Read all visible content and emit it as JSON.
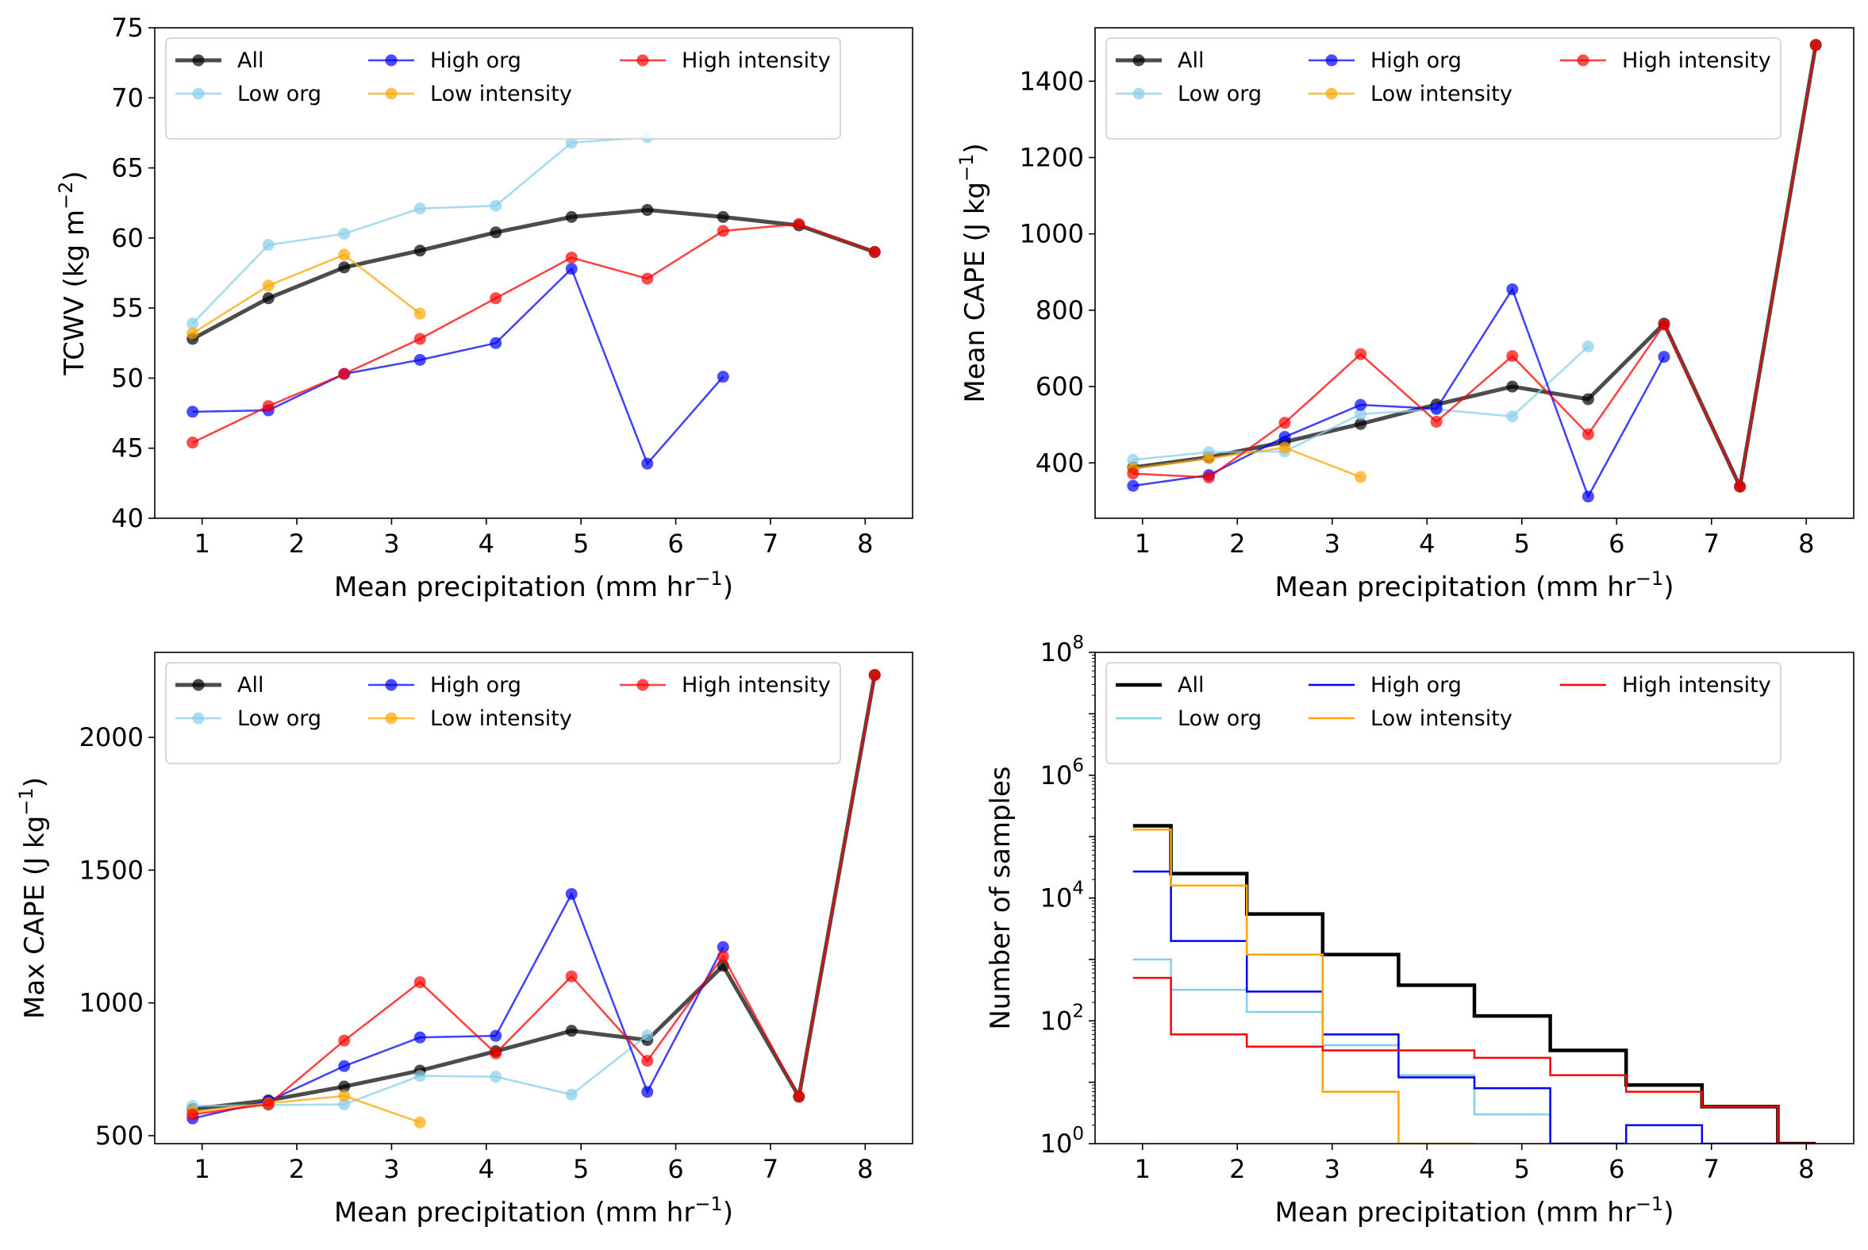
{
  "chart_data": [
    {
      "type": "line",
      "ylabel": "TCWV (kg m⁻²)",
      "xlabel": "Mean precipitation (mm hr⁻¹)",
      "xlim": [
        0.5,
        8.5
      ],
      "ylim": [
        40,
        75
      ],
      "yscale": "linear",
      "xticks": [
        {
          "v": 1,
          "label": "1"
        },
        {
          "v": 2,
          "label": "2"
        },
        {
          "v": 3,
          "label": "3"
        },
        {
          "v": 4,
          "label": "4"
        },
        {
          "v": 5,
          "label": "5"
        },
        {
          "v": 6,
          "label": "6"
        },
        {
          "v": 7,
          "label": "7"
        },
        {
          "v": 8,
          "label": "8"
        }
      ],
      "yticks": [
        {
          "v": 40,
          "label": "40"
        },
        {
          "v": 45,
          "label": "45"
        },
        {
          "v": 50,
          "label": "50"
        },
        {
          "v": 55,
          "label": "55"
        },
        {
          "v": 60,
          "label": "60"
        },
        {
          "v": 65,
          "label": "65"
        },
        {
          "v": 70,
          "label": "70"
        },
        {
          "v": 75,
          "label": "75"
        }
      ],
      "legend_position": "top",
      "series": [
        {
          "name": "All",
          "color": "#000000",
          "x": [
            0.9,
            1.7,
            2.5,
            3.3,
            4.1,
            4.9,
            5.7,
            6.5,
            7.3,
            8.1
          ],
          "y": [
            52.8,
            55.7,
            57.9,
            59.1,
            60.4,
            61.5,
            62.0,
            61.5,
            60.9,
            59.0
          ]
        },
        {
          "name": "Low org",
          "color": "#87ceeb",
          "x": [
            0.9,
            1.7,
            2.5,
            3.3,
            4.1,
            4.9,
            5.7
          ],
          "y": [
            53.9,
            59.5,
            60.3,
            62.1,
            62.3,
            66.8,
            67.2
          ]
        },
        {
          "name": "High org",
          "color": "#0000ff",
          "x": [
            0.9,
            1.7,
            2.5,
            3.3,
            4.1,
            4.9,
            5.7,
            6.5
          ],
          "y": [
            47.6,
            47.7,
            50.3,
            51.3,
            52.5,
            57.8,
            43.9,
            50.1
          ]
        },
        {
          "name": "Low intensity",
          "color": "#ffa500",
          "x": [
            0.9,
            1.7,
            2.5,
            3.3
          ],
          "y": [
            53.2,
            56.6,
            58.8,
            54.6
          ]
        },
        {
          "name": "High intensity",
          "color": "#ff0000",
          "x": [
            0.9,
            1.7,
            2.5,
            3.3,
            4.1,
            4.9,
            5.7,
            6.5,
            7.3,
            8.1
          ],
          "y": [
            45.4,
            48.0,
            50.3,
            52.8,
            55.7,
            58.6,
            57.1,
            60.5,
            61.0,
            59.0
          ]
        }
      ]
    },
    {
      "type": "line",
      "ylabel": "Mean CAPE (J kg⁻¹)",
      "xlabel": "Mean precipitation (mm hr⁻¹)",
      "xlim": [
        0.5,
        8.5
      ],
      "ylim": [
        255,
        1540
      ],
      "yscale": "linear",
      "xticks": [
        {
          "v": 1,
          "label": "1"
        },
        {
          "v": 2,
          "label": "2"
        },
        {
          "v": 3,
          "label": "3"
        },
        {
          "v": 4,
          "label": "4"
        },
        {
          "v": 5,
          "label": "5"
        },
        {
          "v": 6,
          "label": "6"
        },
        {
          "v": 7,
          "label": "7"
        },
        {
          "v": 8,
          "label": "8"
        }
      ],
      "yticks": [
        {
          "v": 400,
          "label": "400"
        },
        {
          "v": 600,
          "label": "600"
        },
        {
          "v": 800,
          "label": "800"
        },
        {
          "v": 1000,
          "label": "1000"
        },
        {
          "v": 1200,
          "label": "1200"
        },
        {
          "v": 1400,
          "label": "1400"
        }
      ],
      "legend_position": "top",
      "series": [
        {
          "name": "All",
          "color": "#000000",
          "x": [
            0.9,
            1.7,
            2.5,
            3.3,
            4.1,
            4.9,
            5.7,
            6.5,
            7.3,
            8.1
          ],
          "y": [
            388,
            415,
            455,
            502,
            553,
            600,
            567,
            765,
            338,
            1495
          ]
        },
        {
          "name": "Low org",
          "color": "#87ceeb",
          "x": [
            0.9,
            1.7,
            2.5,
            3.3,
            4.1,
            4.9,
            5.7
          ],
          "y": [
            408,
            428,
            430,
            528,
            540,
            522,
            705
          ]
        },
        {
          "name": "High org",
          "color": "#0000ff",
          "x": [
            0.9,
            1.7,
            2.5,
            3.3,
            4.1,
            4.9,
            5.7,
            6.5
          ],
          "y": [
            340,
            368,
            468,
            552,
            542,
            855,
            312,
            678
          ]
        },
        {
          "name": "Low intensity",
          "color": "#ffa500",
          "x": [
            0.9,
            1.7,
            2.5,
            3.3
          ],
          "y": [
            385,
            412,
            440,
            363
          ]
        },
        {
          "name": "High intensity",
          "color": "#ff0000",
          "x": [
            0.9,
            1.7,
            2.5,
            3.3,
            4.1,
            4.9,
            5.7,
            6.5,
            7.3,
            8.1
          ],
          "y": [
            372,
            362,
            505,
            685,
            508,
            680,
            475,
            762,
            338,
            1495
          ]
        }
      ]
    },
    {
      "type": "line",
      "ylabel": "Max CAPE (J kg⁻¹)",
      "xlabel": "Mean precipitation (mm hr⁻¹)",
      "xlim": [
        0.5,
        8.5
      ],
      "ylim": [
        470,
        2320
      ],
      "yscale": "linear",
      "xticks": [
        {
          "v": 1,
          "label": "1"
        },
        {
          "v": 2,
          "label": "2"
        },
        {
          "v": 3,
          "label": "3"
        },
        {
          "v": 4,
          "label": "4"
        },
        {
          "v": 5,
          "label": "5"
        },
        {
          "v": 6,
          "label": "6"
        },
        {
          "v": 7,
          "label": "7"
        },
        {
          "v": 8,
          "label": "8"
        }
      ],
      "yticks": [
        {
          "v": 500,
          "label": "500"
        },
        {
          "v": 1000,
          "label": "1000"
        },
        {
          "v": 1500,
          "label": "1500"
        },
        {
          "v": 2000,
          "label": "2000"
        }
      ],
      "legend_position": "top",
      "series": [
        {
          "name": "All",
          "color": "#000000",
          "x": [
            0.9,
            1.7,
            2.5,
            3.3,
            4.1,
            4.9,
            5.7,
            6.5,
            7.3,
            8.1
          ],
          "y": [
            600,
            633,
            685,
            745,
            818,
            895,
            860,
            1140,
            647,
            2235
          ]
        },
        {
          "name": "Low org",
          "color": "#87ceeb",
          "x": [
            0.9,
            1.7,
            2.5,
            3.3,
            4.1,
            4.9,
            5.7
          ],
          "y": [
            612,
            615,
            618,
            725,
            722,
            655,
            878
          ]
        },
        {
          "name": "High org",
          "color": "#0000ff",
          "x": [
            0.9,
            1.7,
            2.5,
            3.3,
            4.1,
            4.9,
            5.7,
            6.5
          ],
          "y": [
            565,
            630,
            762,
            870,
            876,
            1410,
            665,
            1210
          ]
        },
        {
          "name": "Low intensity",
          "color": "#ffa500",
          "x": [
            0.9,
            1.7,
            2.5,
            3.3
          ],
          "y": [
            590,
            622,
            650,
            550
          ]
        },
        {
          "name": "High intensity",
          "color": "#ff0000",
          "x": [
            0.9,
            1.7,
            2.5,
            3.3,
            4.1,
            4.9,
            5.7,
            6.5,
            7.3,
            8.1
          ],
          "y": [
            580,
            618,
            858,
            1078,
            810,
            1100,
            782,
            1175,
            647,
            2235
          ]
        }
      ]
    },
    {
      "type": "step",
      "ylabel": "Number of samples",
      "xlabel": "Mean precipitation (mm hr⁻¹)",
      "xlim": [
        0.5,
        8.5
      ],
      "ylim": [
        1,
        100000000
      ],
      "yscale": "log",
      "xticks": [
        {
          "v": 1,
          "label": "1"
        },
        {
          "v": 2,
          "label": "2"
        },
        {
          "v": 3,
          "label": "3"
        },
        {
          "v": 4,
          "label": "4"
        },
        {
          "v": 5,
          "label": "5"
        },
        {
          "v": 6,
          "label": "6"
        },
        {
          "v": 7,
          "label": "7"
        },
        {
          "v": 8,
          "label": "8"
        }
      ],
      "yticks": [
        {
          "v": 1,
          "base": "10",
          "exp": "0"
        },
        {
          "v": 100,
          "base": "10",
          "exp": "2"
        },
        {
          "v": 10000,
          "base": "10",
          "exp": "4"
        },
        {
          "v": 1000000,
          "base": "10",
          "exp": "6"
        },
        {
          "v": 100000000,
          "base": "10",
          "exp": "8"
        }
      ],
      "legend_position": "top",
      "bin_edges": [
        0.9,
        1.3,
        2.1,
        2.9,
        3.7,
        4.5,
        5.3,
        6.1,
        6.9,
        7.7,
        8.1
      ],
      "series": [
        {
          "name": "All",
          "color": "#000000",
          "values": [
            150000,
            25000,
            5500,
            1200,
            380,
            120,
            33,
            9,
            4,
            1
          ]
        },
        {
          "name": "Low org",
          "color": "#87ceeb",
          "values": [
            1000,
            320,
            140,
            40,
            13,
            3,
            1
          ]
        },
        {
          "name": "High org",
          "color": "#0000ff",
          "values": [
            27000,
            2000,
            300,
            60,
            12,
            8,
            1,
            2,
            1
          ]
        },
        {
          "name": "Low intensity",
          "color": "#ffa500",
          "values": [
            130000,
            16000,
            1200,
            7,
            1
          ]
        },
        {
          "name": "High intensity",
          "color": "#ff0000",
          "values": [
            500,
            60,
            38,
            33,
            33,
            25,
            13,
            7,
            4,
            1
          ]
        }
      ]
    }
  ]
}
